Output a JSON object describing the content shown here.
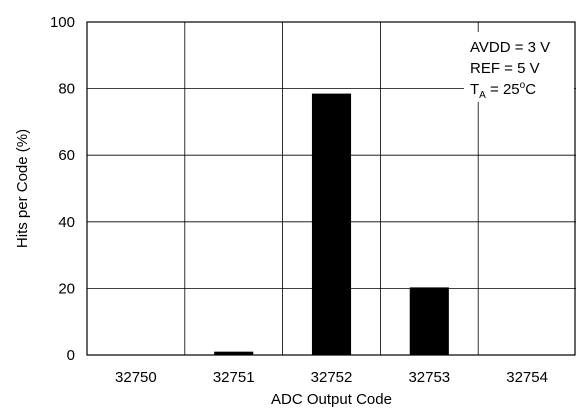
{
  "chart_data": {
    "type": "bar",
    "categories": [
      "32750",
      "32751",
      "32752",
      "32753",
      "32754"
    ],
    "values": [
      0,
      1,
      78.5,
      20.3,
      0
    ],
    "xlabel": "ADC Output Code",
    "ylabel": "Hits per Code (%)",
    "ylim": [
      0,
      100
    ],
    "yticks": [
      "0",
      "20",
      "40",
      "60",
      "80",
      "100"
    ],
    "grid": true,
    "bar_color": "#000000",
    "annotations": [
      {
        "text": "AVDD = 3 V"
      },
      {
        "text": "REF = 5 V"
      },
      {
        "main": "T",
        "sub": "A",
        "rest": " = 25",
        "sup": "o",
        "unit": "C"
      }
    ]
  }
}
